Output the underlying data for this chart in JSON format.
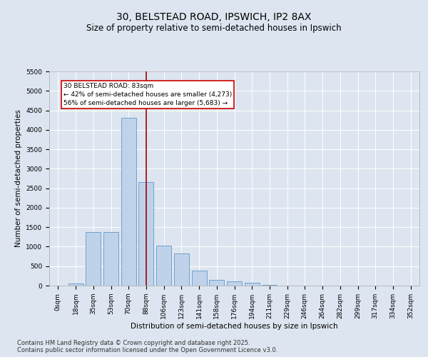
{
  "title1": "30, BELSTEAD ROAD, IPSWICH, IP2 8AX",
  "title2": "Size of property relative to semi-detached houses in Ipswich",
  "xlabel": "Distribution of semi-detached houses by size in Ipswich",
  "ylabel": "Number of semi-detached properties",
  "categories": [
    "0sqm",
    "18sqm",
    "35sqm",
    "53sqm",
    "70sqm",
    "88sqm",
    "106sqm",
    "123sqm",
    "141sqm",
    "158sqm",
    "176sqm",
    "194sqm",
    "211sqm",
    "229sqm",
    "246sqm",
    "264sqm",
    "282sqm",
    "299sqm",
    "317sqm",
    "334sqm",
    "352sqm"
  ],
  "values": [
    5,
    50,
    1380,
    1380,
    4300,
    2660,
    1020,
    820,
    390,
    155,
    105,
    75,
    15,
    5,
    2,
    2,
    0,
    0,
    0,
    0,
    0
  ],
  "bar_color": "#bed3ea",
  "bar_edge_color": "#6496c8",
  "vline_x": 5.0,
  "vline_color": "#990000",
  "annotation_text": "30 BELSTEAD ROAD: 83sqm\n← 42% of semi-detached houses are smaller (4,273)\n56% of semi-detached houses are larger (5,683) →",
  "annotation_box_color": "#ffffff",
  "annotation_box_edge": "#cc0000",
  "ylim_max": 5500,
  "yticks": [
    0,
    500,
    1000,
    1500,
    2000,
    2500,
    3000,
    3500,
    4000,
    4500,
    5000,
    5500
  ],
  "background_color": "#dde5f0",
  "plot_bg_color": "#dde5f0",
  "grid_color": "#ffffff",
  "footer_text": "Contains HM Land Registry data © Crown copyright and database right 2025.\nContains public sector information licensed under the Open Government Licence v3.0.",
  "title_fontsize": 10,
  "subtitle_fontsize": 8.5,
  "axis_label_fontsize": 7.5,
  "tick_fontsize": 6.5,
  "annotation_fontsize": 6.5,
  "footer_fontsize": 6.0
}
